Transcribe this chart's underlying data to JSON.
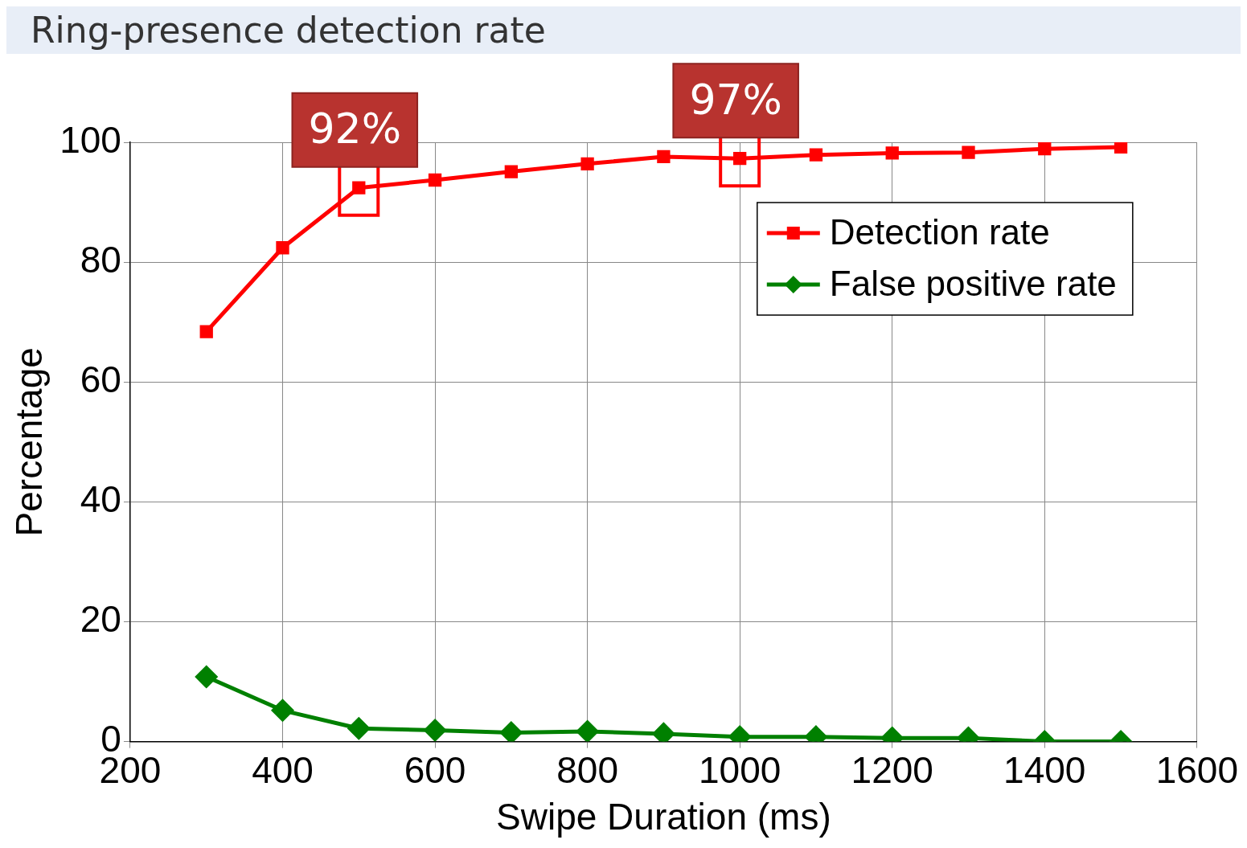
{
  "chart_data": {
    "type": "line",
    "title": "Ring-presence detection rate",
    "xlabel": "Swipe Duration (ms)",
    "ylabel": "Percentage",
    "x": [
      300,
      400,
      500,
      600,
      700,
      800,
      900,
      1000,
      1100,
      1200,
      1300,
      1400,
      1500
    ],
    "series": [
      {
        "name": "Detection rate",
        "color": "#ff0000",
        "marker": "square",
        "values": [
          68.4,
          82.4,
          92.4,
          93.7,
          95.1,
          96.4,
          97.6,
          97.3,
          97.9,
          98.2,
          98.3,
          98.9,
          99.2
        ]
      },
      {
        "name": "False positive rate",
        "color": "#008000",
        "marker": "diamond",
        "values": [
          10.8,
          5.2,
          2.2,
          1.9,
          1.5,
          1.7,
          1.3,
          0.8,
          0.8,
          0.6,
          0.6,
          0,
          0
        ]
      }
    ],
    "xlim": [
      200,
      1600
    ],
    "xticks": [
      200,
      400,
      600,
      800,
      1000,
      1200,
      1400,
      1600
    ],
    "ylim": [
      0,
      100
    ],
    "yticks": [
      0,
      20,
      40,
      60,
      80,
      100
    ],
    "grid": true,
    "legend": "top right",
    "line_style": "solid",
    "annotations": [
      {
        "text": "92%",
        "x": 500,
        "y": 92.4
      },
      {
        "text": "97%",
        "x": 1000,
        "y": 97.3
      }
    ]
  }
}
